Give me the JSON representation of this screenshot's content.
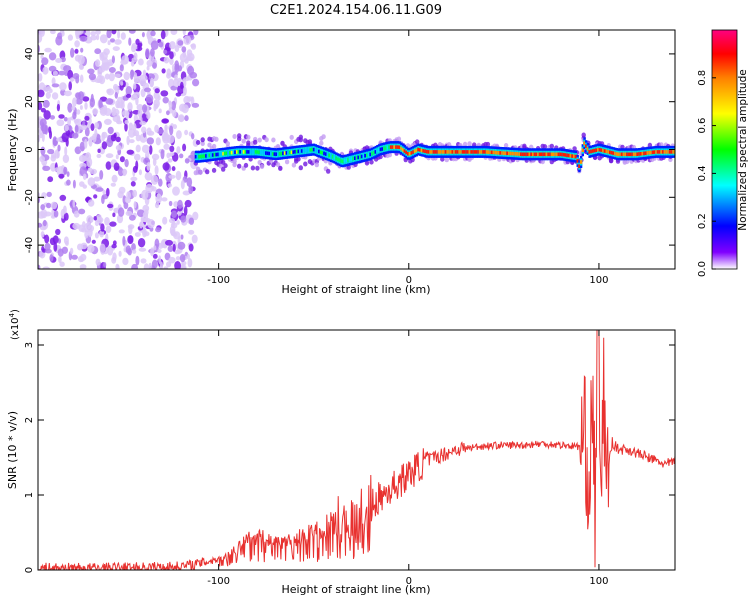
{
  "title": "C2E1.2024.154.06.11.G09",
  "chart_data": [
    {
      "type": "heatmap",
      "xlabel": "Height of straight line (km)",
      "ylabel": "Frequency (Hz)",
      "xlim": [
        -195,
        140
      ],
      "ylim": [
        -50,
        50
      ],
      "xticks": [
        -100,
        0,
        100
      ],
      "yticks": [
        -40,
        -20,
        0,
        20,
        40
      ],
      "grid": false,
      "colorbar": {
        "label": "Normalized spectral amplitude",
        "range": [
          0,
          1
        ],
        "ticks": [
          0.0,
          0.2,
          0.4,
          0.6,
          0.8
        ],
        "colors": [
          "#ffffff",
          "#8000ff",
          "#0000ff",
          "#00ffff",
          "#00ff00",
          "#ffff00",
          "#ff8000",
          "#ff0000",
          "#ff0080"
        ]
      },
      "ridge": {
        "x": [
          -110,
          -100,
          -90,
          -80,
          -70,
          -60,
          -50,
          -40,
          -35,
          -30,
          -25,
          -20,
          -15,
          -10,
          -5,
          0,
          5,
          10,
          20,
          40,
          60,
          80,
          88,
          90,
          92,
          95,
          100,
          110,
          120,
          130,
          140
        ],
        "y": [
          -3,
          -2,
          -1,
          -1,
          -2,
          -1,
          0,
          -3,
          -5,
          -4,
          -3,
          -2,
          0,
          1,
          1,
          -2,
          0,
          -1,
          -1,
          -1,
          -2,
          -2,
          -3,
          -8,
          3,
          -1,
          0,
          -2,
          -2,
          -1,
          -1
        ]
      }
    },
    {
      "type": "line",
      "xlabel": "Height of straight line (km)",
      "ylabel": "SNR (10 * v/v)",
      "ylabel_multiplier": "(x10",
      "ylabel_multiplier_exp": "4",
      "ylabel_multiplier_close": ")",
      "xlim": [
        -195,
        140
      ],
      "ylim": [
        0,
        3.2
      ],
      "xticks": [
        -100,
        0,
        100
      ],
      "yticks": [
        0,
        1,
        2,
        3
      ],
      "grid": false,
      "series": [
        {
          "color": "#e8312f",
          "x": [
            -195,
            -180,
            -160,
            -140,
            -120,
            -110,
            -100,
            -95,
            -90,
            -85,
            -80,
            -75,
            -70,
            -65,
            -60,
            -55,
            -50,
            -45,
            -40,
            -35,
            -30,
            -25,
            -20,
            -15,
            -10,
            -5,
            0,
            5,
            10,
            15,
            20,
            25,
            30,
            40,
            50,
            60,
            70,
            80,
            85,
            90,
            93,
            95,
            97,
            98,
            99,
            100,
            101,
            102,
            104,
            107,
            110,
            115,
            120,
            125,
            130,
            135,
            140
          ],
          "y": [
            0.02,
            0.02,
            0.02,
            0.03,
            0.04,
            0.08,
            0.15,
            0.2,
            0.3,
            0.4,
            0.45,
            0.4,
            0.38,
            0.36,
            0.4,
            0.45,
            0.5,
            0.55,
            0.62,
            0.65,
            0.7,
            0.75,
            0.82,
            0.95,
            1.05,
            1.15,
            1.25,
            1.35,
            1.45,
            1.5,
            1.55,
            1.6,
            1.62,
            1.65,
            1.66,
            1.66,
            1.68,
            1.66,
            1.65,
            1.64,
            1.6,
            1.1,
            2.2,
            0.6,
            2.6,
            3.2,
            0.2,
            2.5,
            1.2,
            1.7,
            1.6,
            1.6,
            1.55,
            1.5,
            1.45,
            1.4,
            1.45
          ]
        }
      ]
    }
  ]
}
